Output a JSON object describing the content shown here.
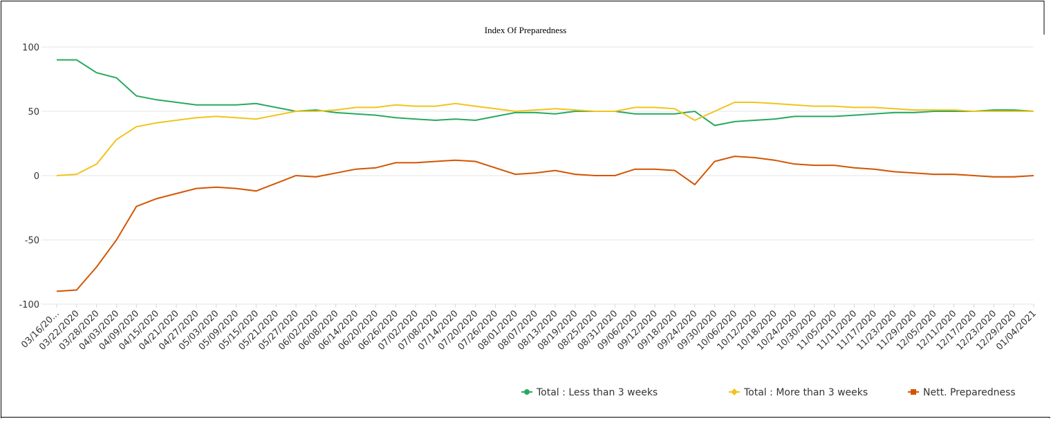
{
  "chart_data": {
    "type": "line",
    "title": "Index Of Preparedness",
    "categories": [
      "03/16/20...",
      "03/22/2020",
      "03/28/2020",
      "04/03/2020",
      "04/09/2020",
      "04/15/2020",
      "04/21/2020",
      "04/27/2020",
      "05/03/2020",
      "05/09/2020",
      "05/15/2020",
      "05/21/2020",
      "05/27/2020",
      "06/02/2020",
      "06/08/2020",
      "06/14/2020",
      "06/20/2020",
      "06/26/2020",
      "07/02/2020",
      "07/08/2020",
      "07/14/2020",
      "07/20/2020",
      "07/26/2020",
      "08/01/2020",
      "08/07/2020",
      "08/13/2020",
      "08/19/2020",
      "08/25/2020",
      "08/31/2020",
      "09/06/2020",
      "09/12/2020",
      "09/18/2020",
      "09/24/2020",
      "09/30/2020",
      "10/06/2020",
      "10/12/2020",
      "10/18/2020",
      "10/24/2020",
      "10/30/2020",
      "11/05/2020",
      "11/11/2020",
      "11/17/2020",
      "11/23/2020",
      "11/29/2020",
      "12/05/2020",
      "12/11/2020",
      "12/17/2020",
      "12/23/2020",
      "12/29/2020",
      "01/04/2021"
    ],
    "series": [
      {
        "name": "Total : Less than 3 weeks",
        "color": "#27a95f",
        "marker": "circle",
        "values": [
          90,
          90,
          80,
          76,
          62,
          59,
          57,
          55,
          55,
          55,
          56,
          53,
          50,
          51,
          49,
          48,
          47,
          45,
          44,
          43,
          44,
          43,
          46,
          49,
          49,
          48,
          50,
          50,
          50,
          48,
          48,
          48,
          50,
          39,
          42,
          43,
          44,
          46,
          46,
          46,
          47,
          48,
          49,
          49,
          50,
          50,
          50,
          51,
          51,
          50
        ]
      },
      {
        "name": "Total : More than 3 weeks",
        "color": "#f2c31c",
        "marker": "diamond",
        "values": [
          0,
          1,
          9,
          28,
          38,
          41,
          43,
          45,
          46,
          45,
          44,
          47,
          50,
          50,
          51,
          53,
          53,
          55,
          54,
          54,
          56,
          54,
          52,
          50,
          51,
          52,
          51,
          50,
          50,
          53,
          53,
          52,
          43,
          50,
          57,
          57,
          56,
          55,
          54,
          54,
          53,
          53,
          52,
          51,
          51,
          51,
          50,
          50,
          50,
          50
        ]
      },
      {
        "name": "Nett. Preparedness",
        "color": "#d35400",
        "marker": "square",
        "values": [
          -90,
          -89,
          -71,
          -50,
          -24,
          -18,
          -14,
          -10,
          -9,
          -10,
          -12,
          -6,
          0,
          -1,
          2,
          5,
          6,
          10,
          10,
          11,
          12,
          11,
          6,
          1,
          2,
          4,
          1,
          0,
          0,
          5,
          5,
          4,
          -7,
          11,
          15,
          14,
          12,
          9,
          8,
          8,
          6,
          5,
          3,
          2,
          1,
          1,
          0,
          -1,
          -1,
          0
        ]
      }
    ],
    "ylim": [
      -100,
      100
    ],
    "yticks": [
      -100,
      -50,
      0,
      50,
      100
    ],
    "grid": true,
    "legend": "bottom-right"
  }
}
